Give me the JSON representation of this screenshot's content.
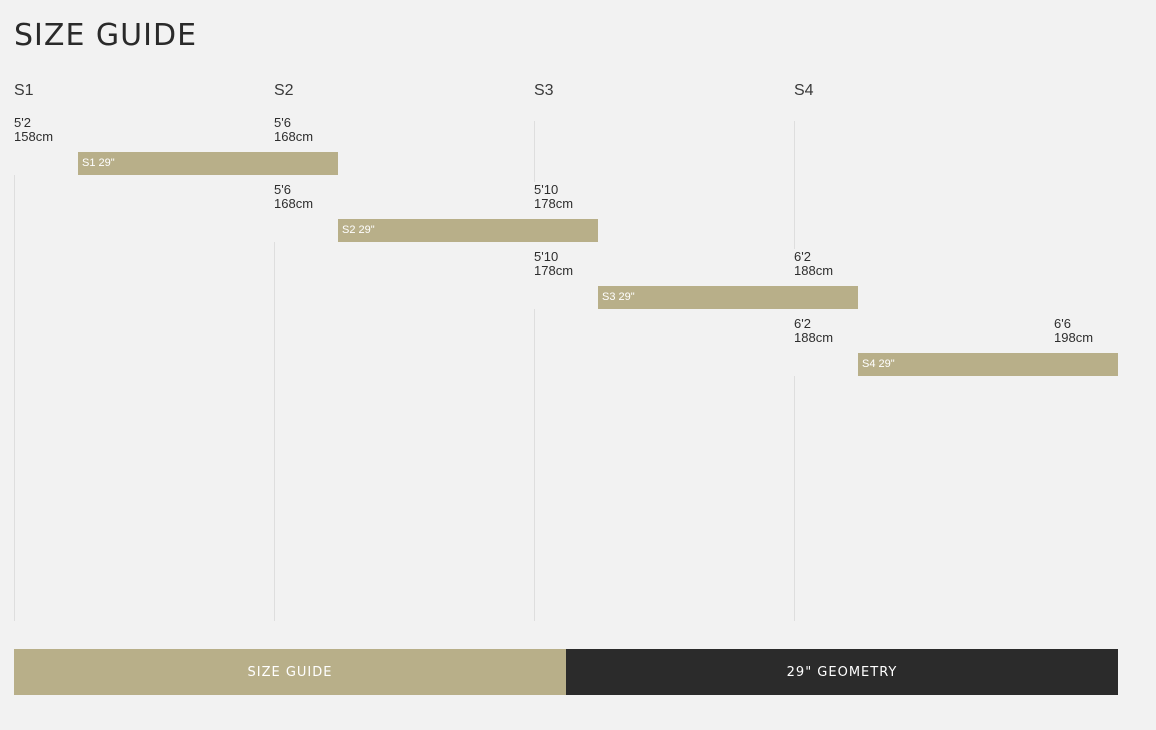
{
  "page": {
    "title": "SIZE GUIDE"
  },
  "columns": [
    {
      "label": "S1"
    },
    {
      "label": "S2"
    },
    {
      "label": "S3"
    },
    {
      "label": "S4"
    }
  ],
  "sizes": [
    {
      "bar_label": "S1 29\"",
      "min": {
        "ft": "5'2",
        "cm": "158cm"
      },
      "max": {
        "ft": "5'6",
        "cm": "168cm"
      }
    },
    {
      "bar_label": "S2 29\"",
      "min": {
        "ft": "5'6",
        "cm": "168cm"
      },
      "max": {
        "ft": "5'10",
        "cm": "178cm"
      }
    },
    {
      "bar_label": "S3 29\"",
      "min": {
        "ft": "5'10",
        "cm": "178cm"
      },
      "max": {
        "ft": "6'2",
        "cm": "188cm"
      }
    },
    {
      "bar_label": "S4 29\"",
      "min": {
        "ft": "6'2",
        "cm": "188cm"
      },
      "max": {
        "ft": "6'6",
        "cm": "198cm"
      }
    }
  ],
  "tabs": [
    {
      "label": "SIZE GUIDE",
      "active": true
    },
    {
      "label": "29\" GEOMETRY",
      "active": false
    }
  ],
  "colors": {
    "accent": "#b8af89",
    "dark": "#2b2b2b",
    "background": "#f2f2f2"
  }
}
